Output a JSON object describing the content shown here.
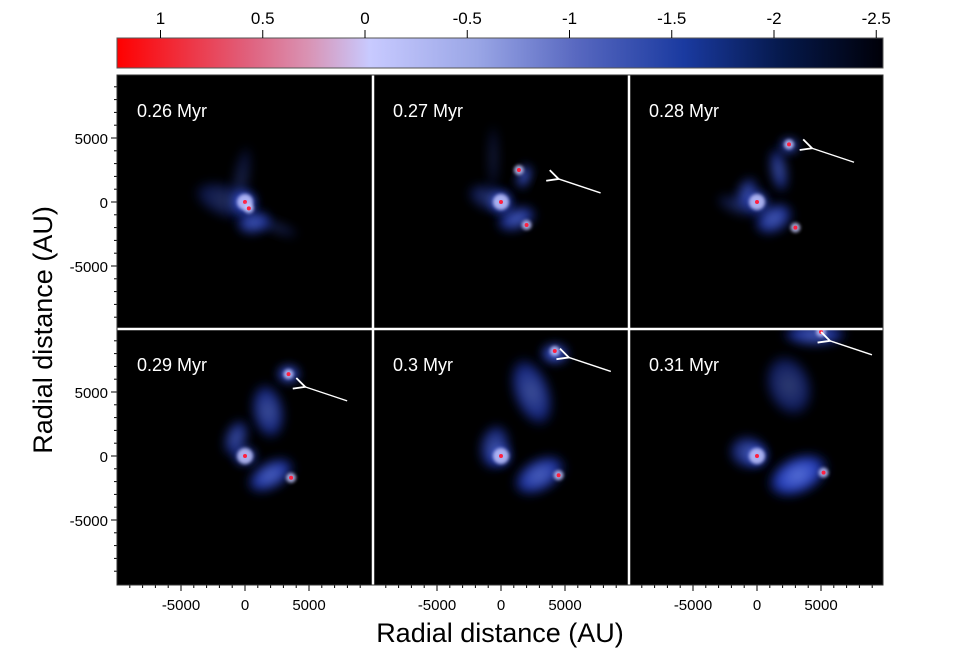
{
  "colorbar": {
    "tick_labels": [
      "1",
      "0.5",
      "0",
      "-0.5",
      "-1",
      "-1.5",
      "-2",
      "-2.5"
    ],
    "tick_values": [
      1,
      0.5,
      0,
      -0.5,
      -1,
      -1.5,
      -2,
      -2.5
    ],
    "range": [
      1.2,
      -2.5
    ],
    "colors": {
      "high": "#ff0000",
      "mid_pink": "#d993b4",
      "zero": "#c8caff",
      "blue": "#1a3aa0",
      "low": "#000008"
    }
  },
  "axes": {
    "xlabel": "Radial distance (AU)",
    "ylabel": "Radial distance (AU)",
    "x_tick_labels": [
      "-5000",
      "0",
      "5000"
    ],
    "y_tick_labels": [
      "5000",
      "0",
      "-5000"
    ],
    "tick_values": [
      -5000,
      0,
      5000
    ],
    "range": [
      -10000,
      10000
    ],
    "minor_tick_step": 1000
  },
  "panels": [
    {
      "time": "0.26 Myr",
      "arrow": false
    },
    {
      "time": "0.27 Myr",
      "arrow": true
    },
    {
      "time": "0.28 Myr",
      "arrow": true
    },
    {
      "time": "0.29 Myr",
      "arrow": true
    },
    {
      "time": "0.3 Myr",
      "arrow": true
    },
    {
      "time": "0.31 Myr",
      "arrow": true
    }
  ],
  "colors": {
    "panel_background": "#000000",
    "divider": "#ffffff",
    "arrow": "#ffffff",
    "gas": "#2a4ee0"
  }
}
